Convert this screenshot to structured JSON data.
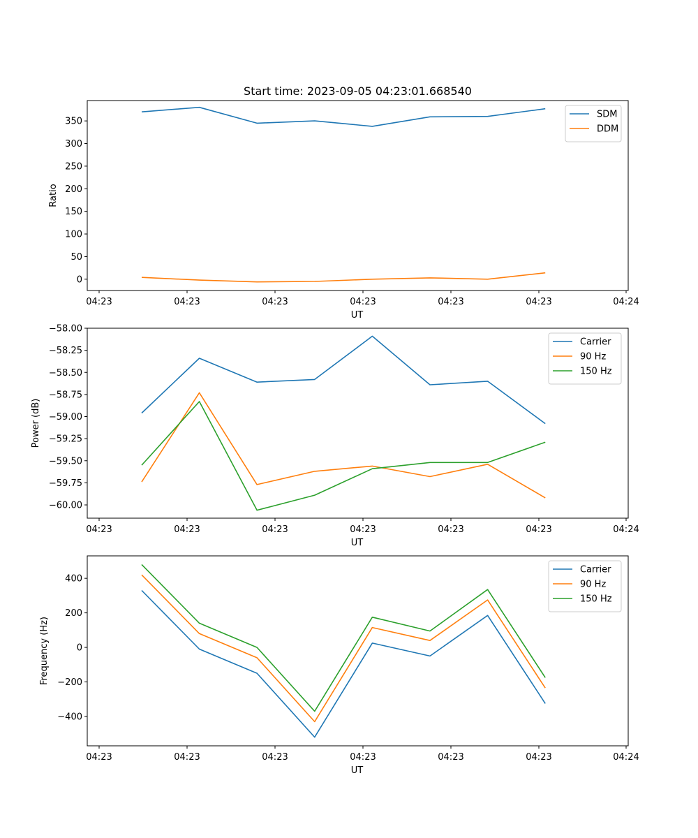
{
  "chart_data": [
    {
      "type": "line",
      "title": "Start time: 2023-09-05 04:23:01.668540",
      "xlabel": "UT",
      "ylabel": "Ratio",
      "x_tick_labels": [
        "04:23",
        "04:23",
        "04:23",
        "04:23",
        "04:23",
        "04:23",
        "04:24"
      ],
      "x": [
        1,
        2,
        3,
        4,
        5,
        6,
        7,
        8
      ],
      "xlim": [
        0.2,
        9.45
      ],
      "ylim": [
        -25,
        395
      ],
      "y_ticks": [
        0,
        50,
        100,
        150,
        200,
        250,
        300,
        350
      ],
      "y_tick_labels": [
        "0",
        "50",
        "100",
        "150",
        "200",
        "250",
        "300",
        "350"
      ],
      "legend_position": "top-right",
      "series": [
        {
          "name": "SDM",
          "color": "#1f77b4",
          "values": [
            370,
            380,
            345,
            350,
            338,
            359,
            360,
            377
          ]
        },
        {
          "name": "DDM",
          "color": "#ff7f0e",
          "values": [
            4,
            -2,
            -6,
            -5,
            0,
            3,
            0,
            14
          ]
        }
      ]
    },
    {
      "type": "line",
      "title": "",
      "xlabel": "UT",
      "ylabel": "Power (dB)",
      "x_tick_labels": [
        "04:23",
        "04:23",
        "04:23",
        "04:23",
        "04:23",
        "04:23",
        "04:24"
      ],
      "x": [
        1,
        2,
        3,
        4,
        5,
        6,
        7,
        8
      ],
      "xlim": [
        0.2,
        9.45
      ],
      "ylim": [
        -60.15,
        -58.0
      ],
      "y_ticks": [
        -58.0,
        -58.25,
        -58.5,
        -58.75,
        -59.0,
        -59.25,
        -59.5,
        -59.75,
        -60.0
      ],
      "y_tick_labels": [
        "−58.00",
        "−58.25",
        "−58.50",
        "−58.75",
        "−59.00",
        "−59.25",
        "−59.50",
        "−59.75",
        "−60.00"
      ],
      "legend_position": "top-right",
      "series": [
        {
          "name": "Carrier",
          "color": "#1f77b4",
          "values": [
            -58.96,
            -58.34,
            -58.61,
            -58.58,
            -58.09,
            -58.64,
            -58.6,
            -59.08
          ]
        },
        {
          "name": "90 Hz",
          "color": "#ff7f0e",
          "values": [
            -59.74,
            -58.73,
            -59.77,
            -59.62,
            -59.56,
            -59.68,
            -59.54,
            -59.92
          ]
        },
        {
          "name": "150 Hz",
          "color": "#2ca02c",
          "values": [
            -59.55,
            -58.83,
            -60.06,
            -59.89,
            -59.59,
            -59.52,
            -59.52,
            -59.29
          ]
        }
      ]
    },
    {
      "type": "line",
      "title": "",
      "xlabel": "UT",
      "ylabel": "Frequency (Hz)",
      "x_tick_labels": [
        "04:23",
        "04:23",
        "04:23",
        "04:23",
        "04:23",
        "04:23",
        "04:24"
      ],
      "x": [
        1,
        2,
        3,
        4,
        5,
        6,
        7,
        8
      ],
      "xlim": [
        0.2,
        9.45
      ],
      "ylim": [
        -570,
        530
      ],
      "y_ticks": [
        -400,
        -200,
        0,
        200,
        400
      ],
      "y_tick_labels": [
        "−400",
        "−200",
        "0",
        "200",
        "400"
      ],
      "legend_position": "top-right",
      "series": [
        {
          "name": "Carrier",
          "color": "#1f77b4",
          "values": [
            330,
            -10,
            -150,
            -520,
            25,
            -50,
            185,
            -325
          ]
        },
        {
          "name": "90 Hz",
          "color": "#ff7f0e",
          "values": [
            420,
            80,
            -60,
            -430,
            115,
            40,
            275,
            -235
          ]
        },
        {
          "name": "150 Hz",
          "color": "#2ca02c",
          "values": [
            480,
            140,
            0,
            -370,
            175,
            95,
            335,
            -175
          ]
        }
      ]
    }
  ]
}
